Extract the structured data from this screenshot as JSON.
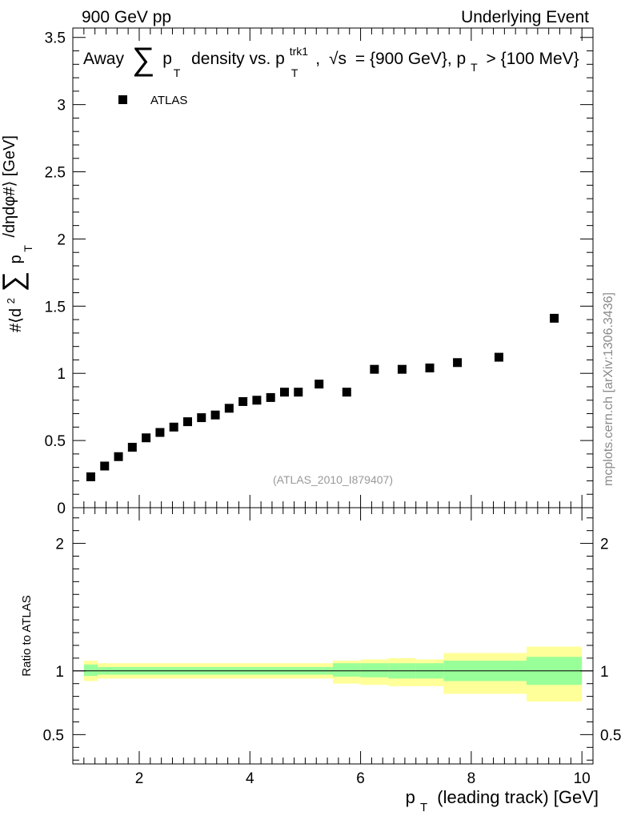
{
  "header": {
    "left": "900 GeV pp",
    "right": "Underlying Event"
  },
  "title": {
    "prefix": "Away",
    "sum_symbol": "∑",
    "p": "p",
    "sub_t": "T",
    "mid": "density vs. p",
    "sup_trk1": "trk1",
    "sqrt": "√s",
    "energy": "= {900 GeV}, p",
    "cut": "> {100 MeV}"
  },
  "ylabel_main": {
    "part1": "#⟨d",
    "sup2": "2",
    "sum": "∑",
    "part2": "p",
    "subT": "T",
    "part3": "/dηdφ#⟩ [GeV]"
  },
  "ylabel_ratio": "Ratio to ATLAS",
  "xlabel": {
    "p": "p",
    "sub": "T",
    "rest": "(leading track) [GeV]"
  },
  "credit": "mcplots.cern.ch [arXiv:1306.3436]",
  "analysis_tag": "(ATLAS_2010_I879407)",
  "colors": {
    "marker": "#000000",
    "band_inner": "#99ff99",
    "band_outer": "#ffff99",
    "ratio_line": "#000000"
  },
  "chart_data": [
    {
      "type": "scatter",
      "name": "main",
      "legend": [
        "ATLAS"
      ],
      "xlim": [
        0.8,
        10.2
      ],
      "ylim": [
        0,
        3.57
      ],
      "yticks": [
        0,
        0.5,
        1,
        1.5,
        2,
        2.5,
        3,
        3.5
      ],
      "ytick_labels": [
        "0",
        "0.5",
        "1",
        "1.5",
        "2",
        "2.5",
        "3",
        "3.5"
      ],
      "series": [
        {
          "name": "ATLAS",
          "x": [
            1.125,
            1.375,
            1.625,
            1.875,
            2.125,
            2.375,
            2.625,
            2.875,
            3.125,
            3.375,
            3.625,
            3.875,
            4.125,
            4.375,
            4.625,
            4.875,
            5.25,
            5.75,
            6.25,
            6.75,
            7.25,
            7.75,
            8.5,
            9.5
          ],
          "y": [
            0.23,
            0.31,
            0.38,
            0.45,
            0.52,
            0.56,
            0.6,
            0.64,
            0.67,
            0.69,
            0.74,
            0.79,
            0.8,
            0.82,
            0.86,
            0.86,
            0.92,
            0.86,
            1.03,
            1.03,
            1.04,
            1.08,
            1.12,
            1.41
          ]
        }
      ]
    },
    {
      "type": "area",
      "name": "ratio",
      "xlabel": "p_T (leading track) [GeV]",
      "ylabel": "Ratio to ATLAS",
      "xlim": [
        0.8,
        10.2
      ],
      "ylim": [
        0.27,
        2.28
      ],
      "xticks": [
        2,
        4,
        6,
        8,
        10
      ],
      "xtick_labels": [
        "2",
        "4",
        "6",
        "8",
        "10"
      ],
      "yticks": [
        0.5,
        1,
        2
      ],
      "ytick_labels": [
        "0.5",
        "1",
        "2"
      ],
      "reference": 1,
      "bins": [
        {
          "lo": 1.0,
          "hi": 1.25,
          "inner": [
            0.96,
            1.05
          ],
          "outer": [
            0.92,
            1.08
          ]
        },
        {
          "lo": 1.25,
          "hi": 5.5,
          "inner": [
            0.97,
            1.03
          ],
          "outer": [
            0.94,
            1.06
          ]
        },
        {
          "lo": 5.5,
          "hi": 6.0,
          "inner": [
            0.955,
            1.06
          ],
          "outer": [
            0.9,
            1.08
          ]
        },
        {
          "lo": 6.0,
          "hi": 6.5,
          "inner": [
            0.95,
            1.06
          ],
          "outer": [
            0.89,
            1.09
          ]
        },
        {
          "lo": 6.5,
          "hi": 7.0,
          "inner": [
            0.94,
            1.06
          ],
          "outer": [
            0.88,
            1.1
          ]
        },
        {
          "lo": 7.0,
          "hi": 7.5,
          "inner": [
            0.94,
            1.06
          ],
          "outer": [
            0.88,
            1.09
          ]
        },
        {
          "lo": 7.5,
          "hi": 9.0,
          "inner": [
            0.92,
            1.08
          ],
          "outer": [
            0.82,
            1.14
          ]
        },
        {
          "lo": 9.0,
          "hi": 10.0,
          "inner": [
            0.89,
            1.11
          ],
          "outer": [
            0.76,
            1.19
          ]
        }
      ]
    }
  ]
}
